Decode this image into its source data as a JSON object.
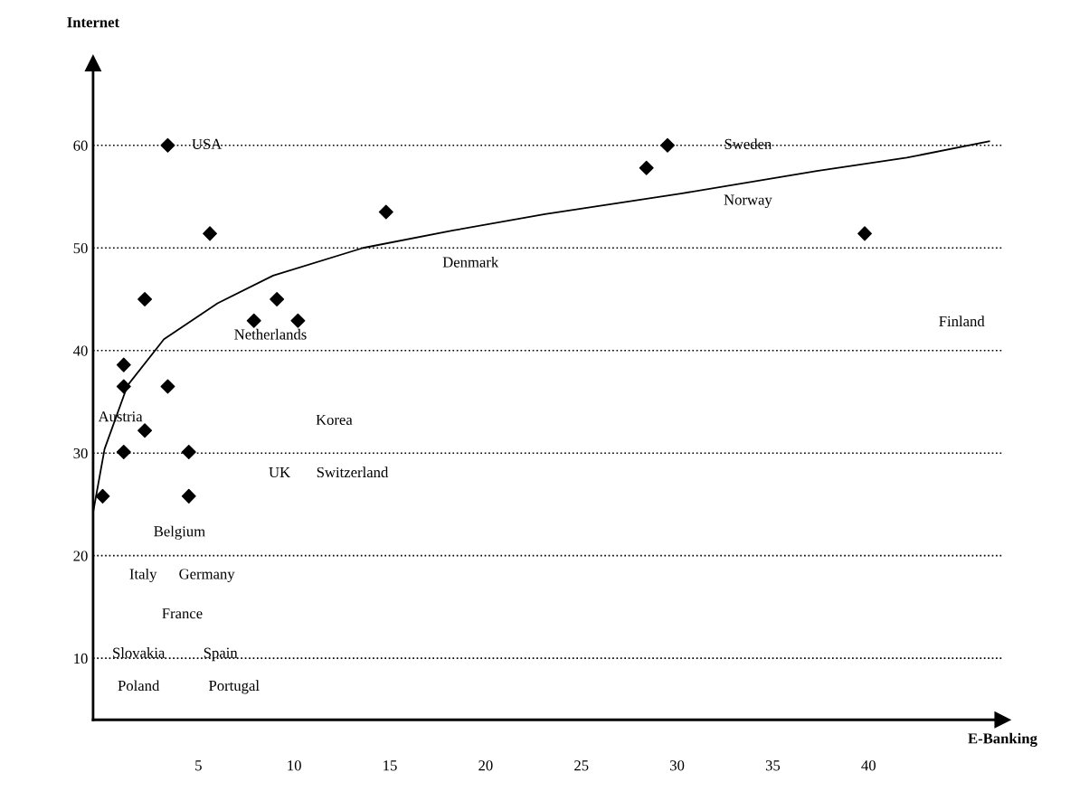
{
  "chart_data": {
    "type": "scatter",
    "xlabel": "E-Banking",
    "ylabel": "Internet",
    "xlim": [
      -0.5,
      47
    ],
    "ylim": [
      4,
      68
    ],
    "xticks": [
      5,
      10,
      15,
      20,
      25,
      30,
      35,
      40
    ],
    "yticks": [
      10,
      20,
      30,
      40,
      50,
      60
    ],
    "grid": "y",
    "marker": "diamond",
    "legend": false,
    "series": [
      {
        "color": "#000000",
        "x": [
          0,
          1.1,
          1.1,
          1.1,
          2.2,
          2.2,
          3.4,
          3.4,
          4.5,
          4.5,
          5.6,
          7.9,
          9.1,
          10.2,
          14.8,
          28.4,
          29.5,
          39.8
        ],
        "values": [
          25.8,
          38.6,
          36.5,
          30.1,
          45.0,
          32.2,
          60,
          36.5,
          30.1,
          25.8,
          51.4,
          42.9,
          45.0,
          42.9,
          53.5,
          57.8,
          60,
          51.4
        ]
      },
      {
        "type": "line",
        "color": "#000000",
        "marker": "none",
        "x": [
          -0.5,
          0.1,
          1.3,
          3.2,
          6.0,
          8.9,
          13.6,
          18.3,
          23.1,
          30.2,
          37.3,
          42.0,
          46.3
        ],
        "values": [
          24.2,
          30.4,
          36.6,
          41.1,
          44.6,
          47.3,
          50.0,
          51.7,
          53.3,
          55.3,
          57.5,
          58.8,
          60.4
        ]
      }
    ],
    "annotations": [
      "USA",
      "Sweden",
      "Norway",
      "Denmark",
      "Netherlands",
      "Finland",
      "Austria",
      "Korea",
      "UK",
      "Switzerland",
      "Belgium",
      "Italy",
      "Germany",
      "France",
      "Slovakia",
      "Spain",
      "Poland",
      "Portugal"
    ]
  }
}
